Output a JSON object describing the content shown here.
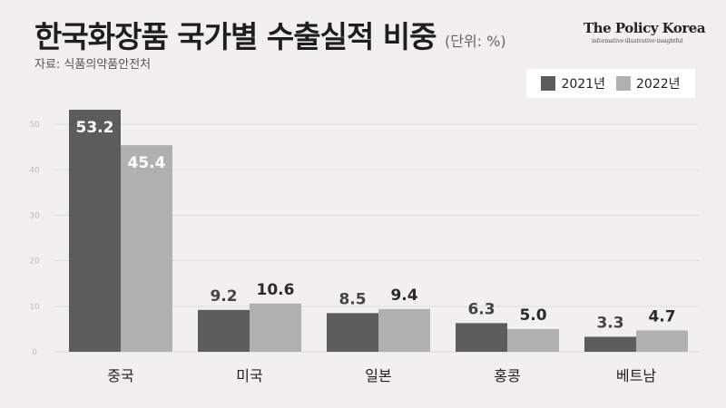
{
  "title": "한국화장품 국가별 수출실적 비중",
  "unit": "(단위: %)",
  "source": "자료: 식품의약품안전처",
  "brand": {
    "name": "The Policy Korea",
    "tagline": "informative·illustrative·insightful"
  },
  "colors": {
    "series_2021": "#5c5c5c",
    "series_2022": "#b0b0b0",
    "background": "#f2eff0",
    "gridline": "#dddddd"
  },
  "chart_data": {
    "type": "bar",
    "categories": [
      "중국",
      "미국",
      "일본",
      "홍콩",
      "베트남"
    ],
    "series": [
      {
        "name": "2021년",
        "values": [
          53.2,
          9.2,
          8.5,
          6.3,
          3.3
        ]
      },
      {
        "name": "2022년",
        "values": [
          45.4,
          10.6,
          9.4,
          5.0,
          4.7
        ]
      }
    ],
    "ylim": [
      0,
      55
    ],
    "yticks": [
      0,
      10,
      20,
      30,
      40,
      50
    ],
    "grid": true,
    "legend_position": "top-right"
  }
}
